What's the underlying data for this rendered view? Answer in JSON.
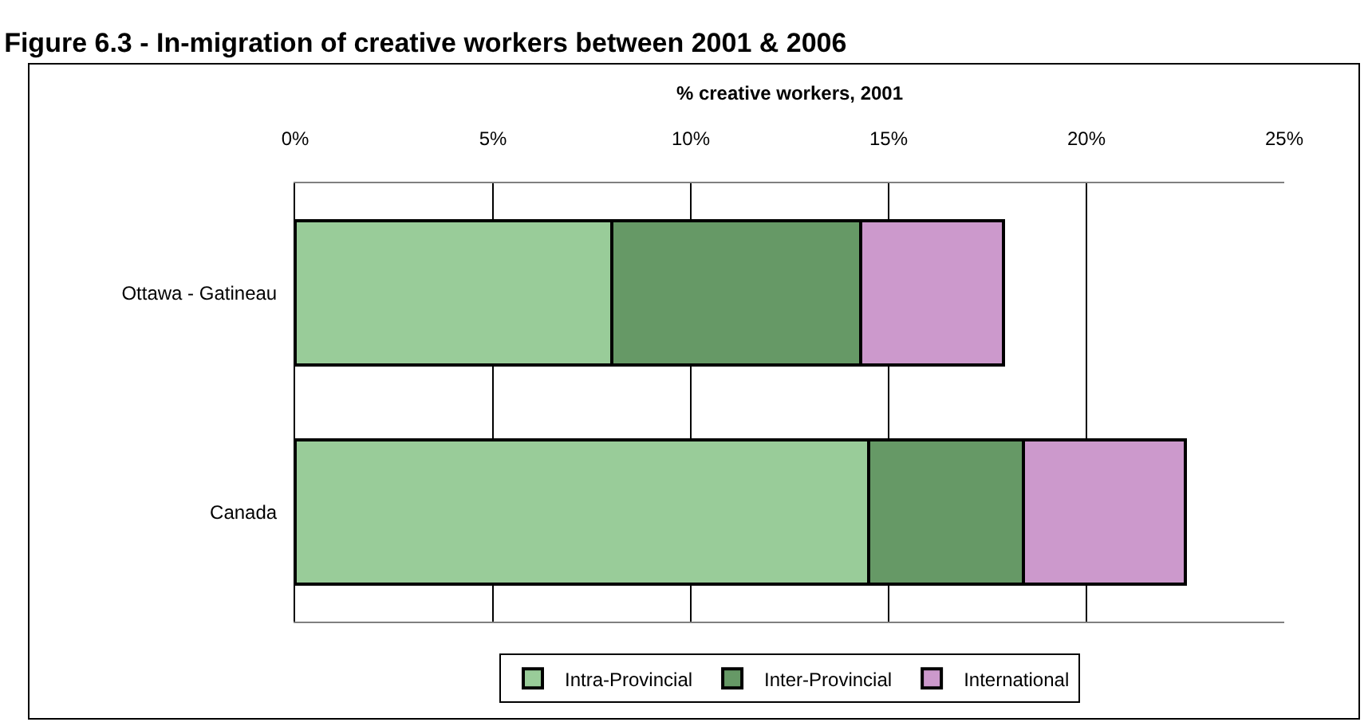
{
  "chart_data": {
    "type": "bar",
    "orientation": "horizontal",
    "stacked": true,
    "title": "Figure 6.3 - In-migration of creative workers between 2001 & 2006",
    "xlabel": "% creative workers, 2001",
    "categories": [
      "Ottawa - Gatineau",
      "Canada"
    ],
    "series": [
      {
        "name": "Intra-Provincial",
        "color": "#99cc99",
        "values": [
          8.0,
          14.5
        ]
      },
      {
        "name": "Inter-Provincial",
        "color": "#669966",
        "values": [
          6.3,
          3.9
        ]
      },
      {
        "name": "International",
        "color": "#cc99cc",
        "values": [
          3.6,
          4.1
        ]
      }
    ],
    "xlim": [
      0,
      25
    ],
    "xticks": [
      {
        "value": 0,
        "label": "0%"
      },
      {
        "value": 5,
        "label": "5%"
      },
      {
        "value": 10,
        "label": "10%"
      },
      {
        "value": 15,
        "label": "15%"
      },
      {
        "value": 20,
        "label": "20%"
      },
      {
        "value": 25,
        "label": "25%"
      }
    ],
    "grid": "x",
    "legend": "bottom"
  }
}
